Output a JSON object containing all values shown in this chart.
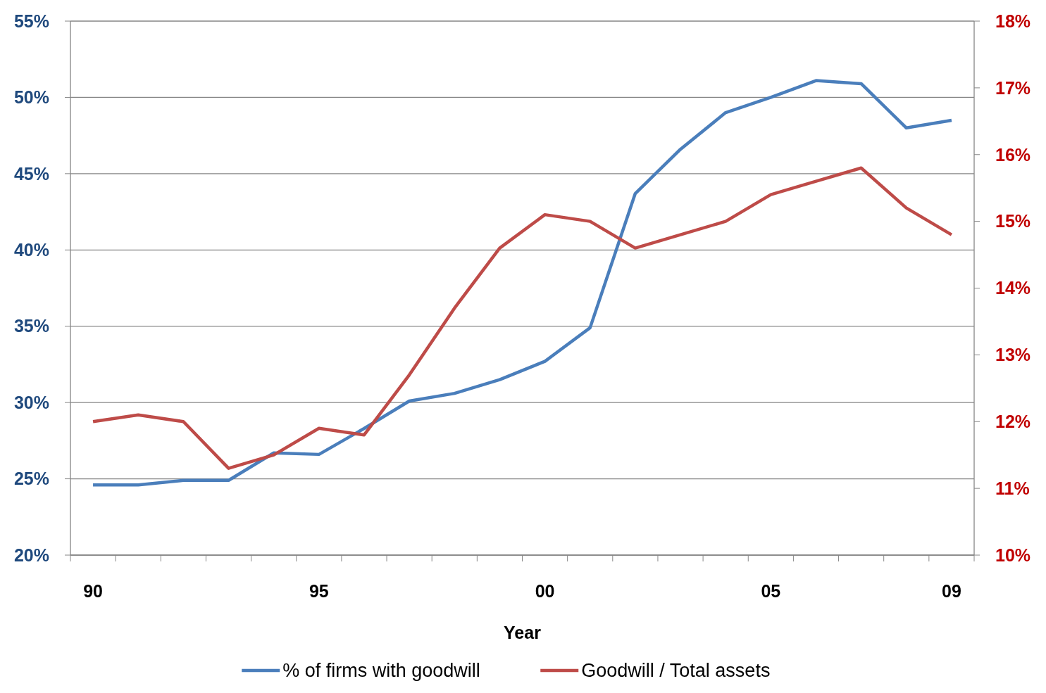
{
  "chart_data": {
    "type": "line",
    "xlabel": "Year",
    "categories": [
      "90",
      null,
      null,
      null,
      null,
      "95",
      null,
      null,
      null,
      null,
      "00",
      null,
      null,
      null,
      null,
      "05",
      null,
      null,
      null,
      "09"
    ],
    "series": [
      {
        "name": "% of firms with goodwill",
        "color": "#4a7ebb",
        "values": [
          24.6,
          24.6,
          24.9,
          24.9,
          26.7,
          26.6,
          28.3,
          30.1,
          30.6,
          31.5,
          32.7,
          34.9,
          43.7,
          46.6,
          49.0,
          50.0,
          51.1,
          50.9,
          48.0,
          48.5
        ]
      },
      {
        "name": "Goodwill / Total assets",
        "color": "#be4b48",
        "axis": "y2",
        "values": [
          12.0,
          12.1,
          12.0,
          11.3,
          11.5,
          11.9,
          11.8,
          12.7,
          13.7,
          14.6,
          15.1,
          15.0,
          14.6,
          14.8,
          15.0,
          15.4,
          15.6,
          15.8,
          15.2,
          14.8
        ]
      }
    ],
    "ylim": [
      20,
      55
    ],
    "yticks": [
      {
        "value": 20,
        "label": "20%"
      },
      {
        "value": 25,
        "label": "25%"
      },
      {
        "value": 30,
        "label": "30%"
      },
      {
        "value": 35,
        "label": "35%"
      },
      {
        "value": 40,
        "label": "40%"
      },
      {
        "value": 45,
        "label": "45%"
      },
      {
        "value": 50,
        "label": "50%"
      },
      {
        "value": 55,
        "label": "55%"
      }
    ],
    "y2lim": [
      10,
      18
    ],
    "y2ticks": [
      {
        "value": 10,
        "label": "10%"
      },
      {
        "value": 11,
        "label": "11%"
      },
      {
        "value": 12,
        "label": "12%"
      },
      {
        "value": 13,
        "label": "13%"
      },
      {
        "value": 14,
        "label": "14%"
      },
      {
        "value": 15,
        "label": "15%"
      },
      {
        "value": 16,
        "label": "16%"
      },
      {
        "value": 17,
        "label": "17%"
      },
      {
        "value": 18,
        "label": "18%"
      }
    ],
    "grid": "y",
    "legend": "bottom",
    "marker": "none",
    "line_style": "solid"
  }
}
